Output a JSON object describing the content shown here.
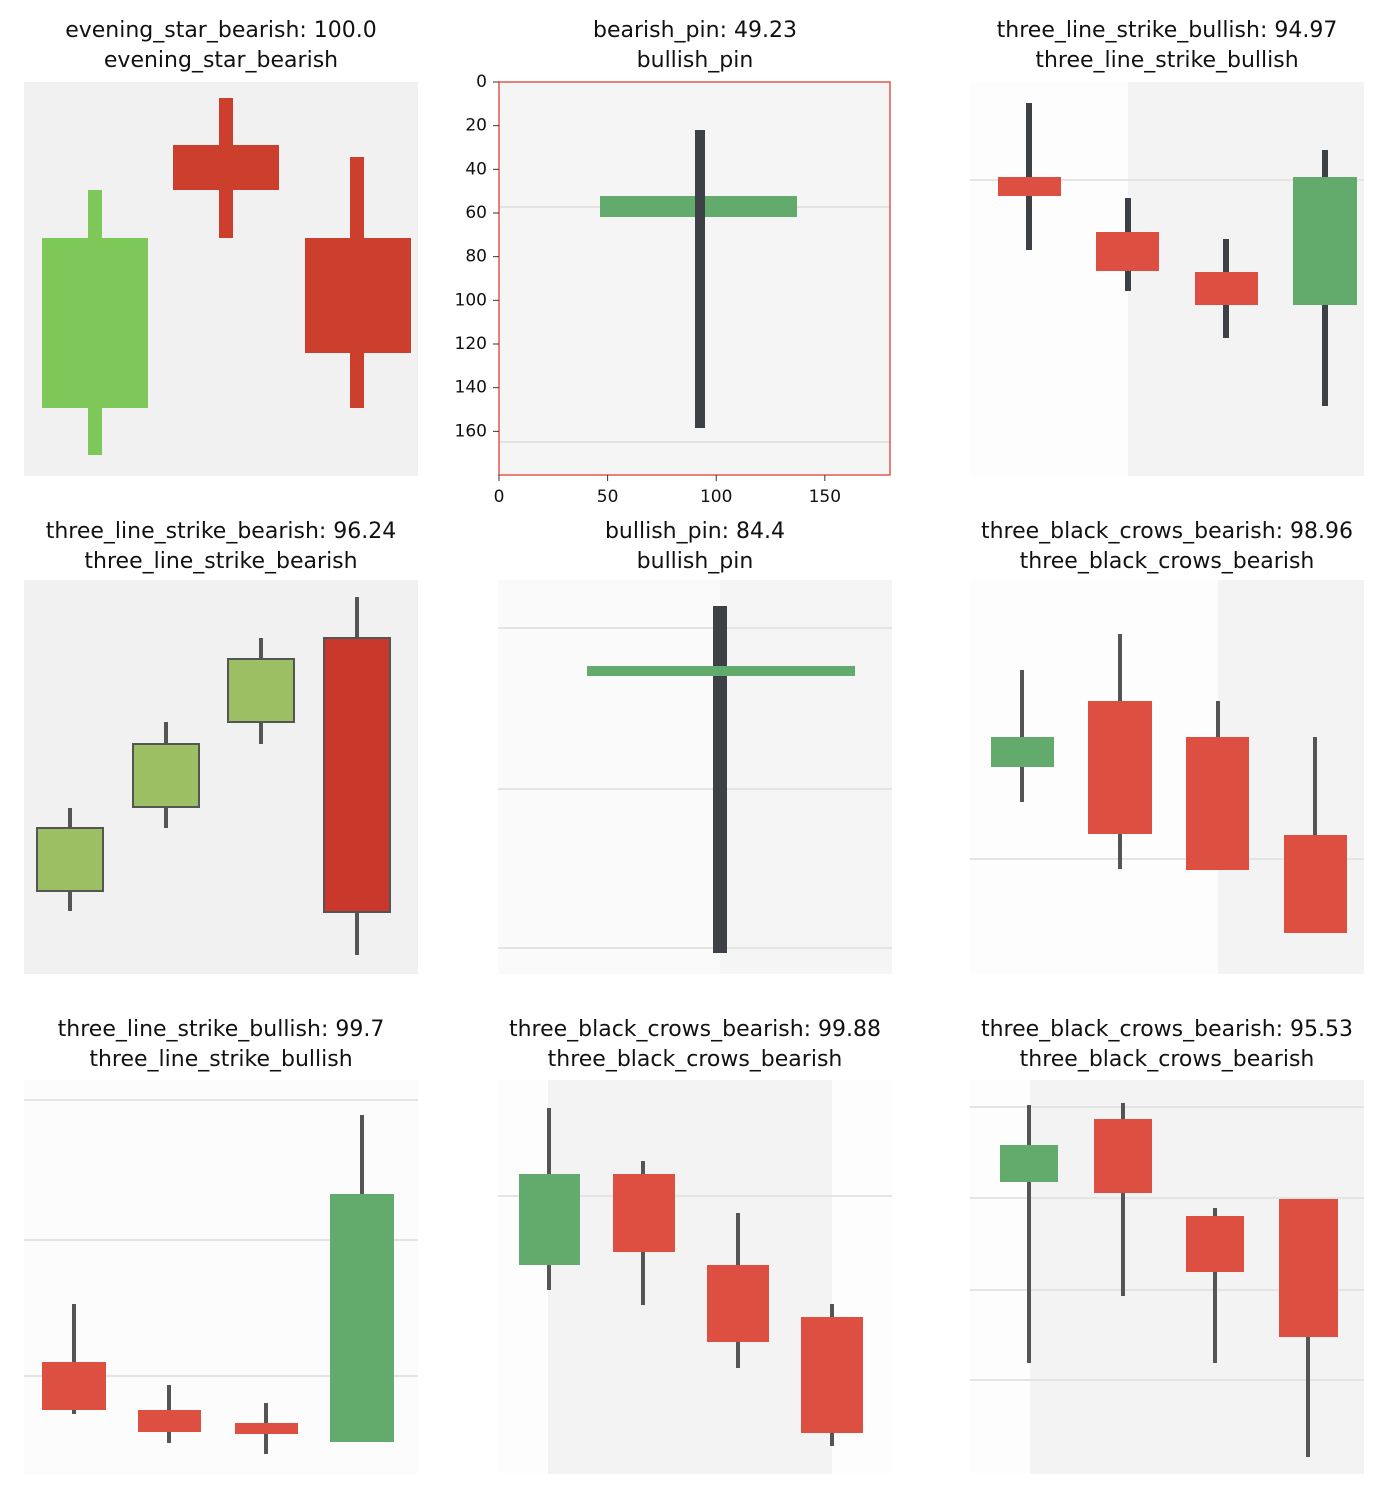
{
  "panels": [
    {
      "title": "evening_star_bearish: 100.0",
      "subtitle": "evening_star_bearish"
    },
    {
      "title": "bearish_pin: 49.23",
      "subtitle": "bullish_pin",
      "xlim": [
        0,
        180
      ],
      "ylim": [
        180,
        0
      ],
      "xticks": [
        0,
        50,
        100,
        150
      ],
      "yticks": [
        0,
        20,
        40,
        60,
        80,
        100,
        120,
        140,
        160
      ]
    },
    {
      "title": "three_line_strike_bullish: 94.97",
      "subtitle": "three_line_strike_bullish"
    },
    {
      "title": "three_line_strike_bearish: 96.24",
      "subtitle": "three_line_strike_bearish"
    },
    {
      "title": "bullish_pin: 84.4",
      "subtitle": "bullish_pin"
    },
    {
      "title": "three_black_crows_bearish: 98.96",
      "subtitle": "three_black_crows_bearish"
    },
    {
      "title": "three_line_strike_bullish: 99.7",
      "subtitle": "three_line_strike_bullish"
    },
    {
      "title": "three_black_crows_bearish: 99.88",
      "subtitle": "three_black_crows_bearish"
    },
    {
      "title": "three_black_crows_bearish: 95.53",
      "subtitle": "three_black_crows_bearish"
    }
  ]
}
